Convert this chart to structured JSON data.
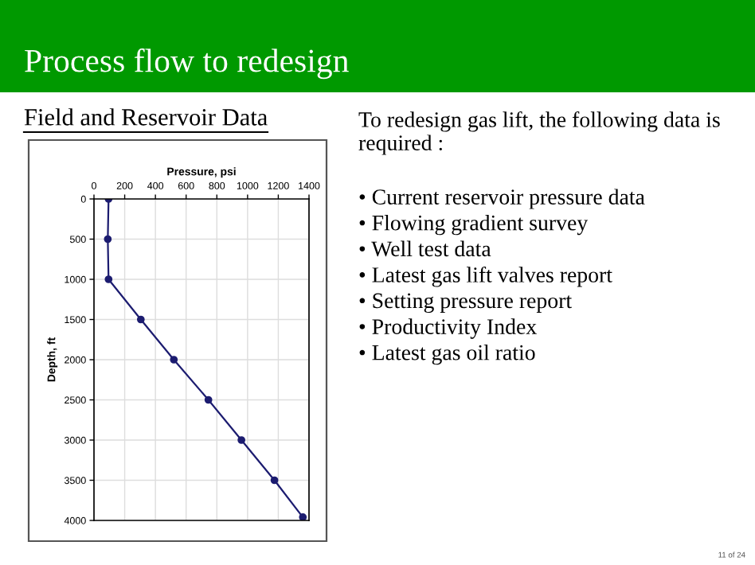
{
  "chart_data": {
    "type": "line",
    "title": "Process flow to redesign",
    "subtitle": "Field and Reservoir Data",
    "xlabel": "Pressure, psi",
    "ylabel": "Depth, ft",
    "annotations": [
      "To redesign gas lift, the following data is required :",
      "• Current reservoir pressure data",
      "• Flowing gradient survey",
      "• Well test data",
      "• Latest gas lift valves report",
      "• Setting pressure report",
      "• Productivity Index",
      "• Latest gas oil ratio",
      "11 of 24"
    ],
    "series": [
      {
        "color": "#1c1c70",
        "x": [
          95,
          90,
          95,
          305,
          520,
          745,
          960,
          1175,
          1360
        ],
        "values": [
          0,
          500,
          1000,
          1500,
          2000,
          2500,
          3000,
          3500,
          3960
        ]
      }
    ],
    "xlim": [
      0,
      1400
    ],
    "xticks": [
      0,
      200,
      400,
      600,
      800,
      1000,
      1200,
      1400
    ],
    "ylim": [
      4000,
      0
    ],
    "yticks": [
      0,
      500,
      1000,
      1500,
      2000,
      2500,
      3000,
      3500,
      4000
    ],
    "grid": true,
    "marker": "circle",
    "line_style": "solid"
  }
}
